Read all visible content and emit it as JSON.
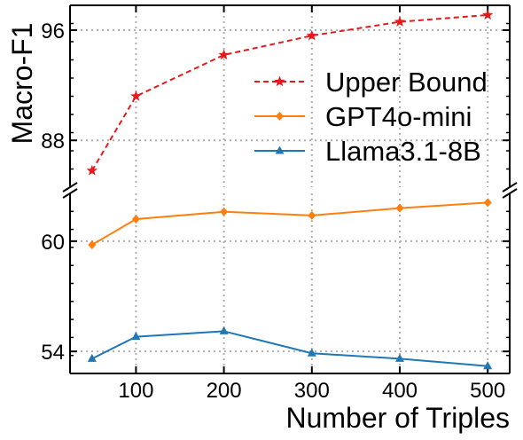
{
  "chart_data": {
    "type": "line",
    "xlabel": "Number of Triples",
    "ylabel": "Macro-F1",
    "x": [
      50,
      100,
      200,
      300,
      400,
      500
    ],
    "xticks": [
      100,
      200,
      300,
      400,
      500
    ],
    "xlim": [
      25,
      525
    ],
    "broken_y_axis": true,
    "upper_ylim": [
      84.6,
      97.8
    ],
    "lower_ylim": [
      52.8,
      62.6
    ],
    "upper_yticks": [
      88,
      96
    ],
    "lower_yticks": [
      54,
      60
    ],
    "grid": true,
    "legend_position": "right, upper panel",
    "series": [
      {
        "name": "Upper Bound",
        "panel": "upper",
        "color": "#e41a1c",
        "line": "dashed",
        "marker": "star",
        "values": [
          85.8,
          91.2,
          94.2,
          95.6,
          96.6,
          97.1
        ]
      },
      {
        "name": "GPT4o-mini",
        "panel": "lower",
        "color": "#ff7f0e",
        "line": "solid",
        "marker": "diamond",
        "values": [
          59.8,
          61.2,
          61.6,
          61.4,
          61.8,
          62.1
        ]
      },
      {
        "name": "Llama3.1-8B",
        "panel": "lower",
        "color": "#1f77b4",
        "line": "solid",
        "marker": "triangle",
        "values": [
          53.6,
          54.8,
          55.1,
          53.9,
          53.6,
          53.2
        ]
      }
    ]
  }
}
